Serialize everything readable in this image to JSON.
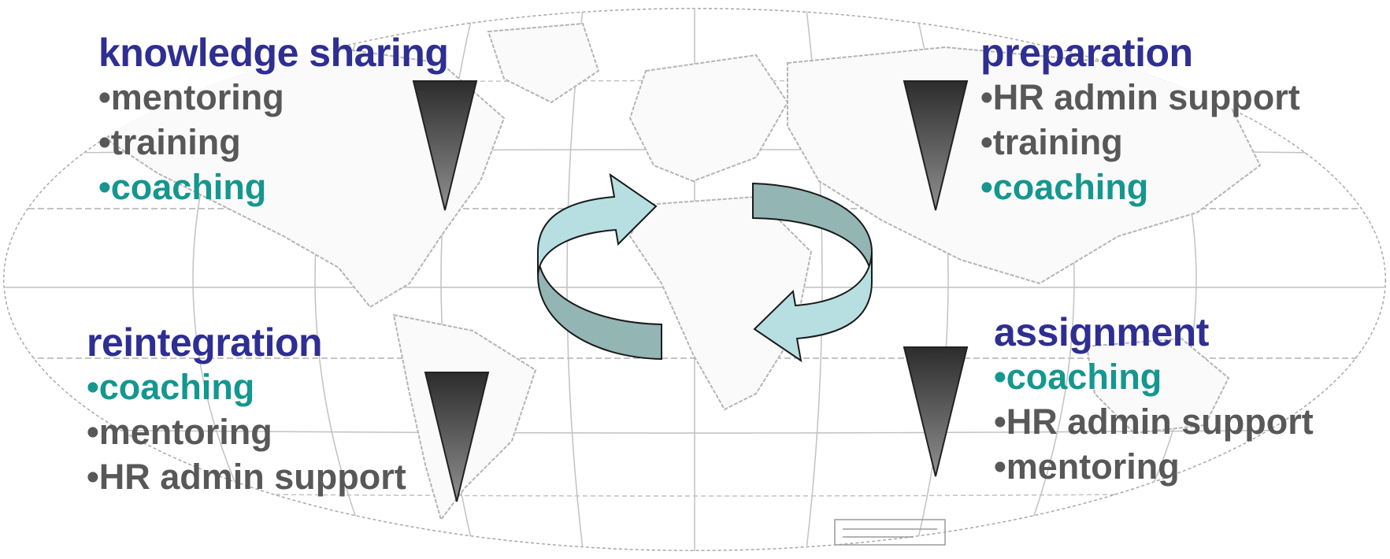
{
  "colors": {
    "title": "#2e2e93",
    "item": "#585858",
    "accent_item": "#14978f",
    "arrow_light": "#b7dfe2",
    "arrow_dark": "#93b5b4",
    "wedge_top": "#303030",
    "wedge_bottom": "#8a8a8a",
    "map_lines": "#b8b8b8"
  },
  "phases": {
    "knowledge_sharing": {
      "title": "knowledge sharing",
      "items": [
        {
          "text": "•mentoring",
          "accent": false
        },
        {
          "text": "•training",
          "accent": false
        },
        {
          "text": "•coaching",
          "accent": true
        }
      ]
    },
    "preparation": {
      "title": "preparation",
      "items": [
        {
          "text": "•HR admin support",
          "accent": false
        },
        {
          "text": "•training",
          "accent": false
        },
        {
          "text": "•coaching",
          "accent": true
        }
      ]
    },
    "reintegration": {
      "title": "reintegration",
      "items": [
        {
          "text": "•coaching",
          "accent": true
        },
        {
          "text": "•mentoring",
          "accent": false
        },
        {
          "text": "•HR admin support",
          "accent": false
        }
      ]
    },
    "assignment": {
      "title": "assignment",
      "items": [
        {
          "text": "•coaching",
          "accent": true
        },
        {
          "text": "•HR admin support",
          "accent": false
        },
        {
          "text": "•mentoring",
          "accent": false
        }
      ]
    }
  },
  "cycle_icon": "circular-arrows-icon",
  "background_icon": "world-map-icon",
  "wedge_icon": "down-triangle-icon"
}
